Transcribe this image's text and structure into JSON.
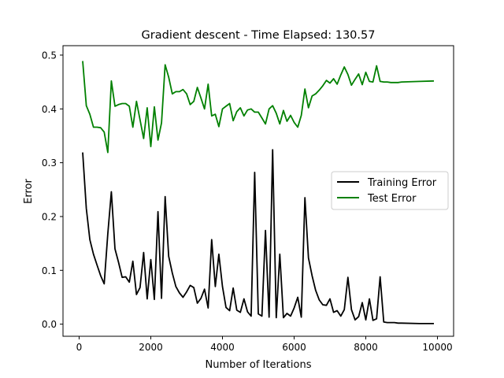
{
  "chart_data": {
    "type": "line",
    "title": "Gradient descent - Time Elapsed: 130.57",
    "xlabel": "Number of Iterations",
    "ylabel": "Error",
    "xlim": [
      -450,
      10450
    ],
    "ylim": [
      -0.0225,
      0.5175
    ],
    "xticks": [
      0,
      2000,
      4000,
      6000,
      8000,
      10000
    ],
    "yticks": [
      0.0,
      0.1,
      0.2,
      0.3,
      0.4,
      0.5
    ],
    "xtick_labels": [
      "0",
      "2000",
      "4000",
      "6000",
      "8000",
      "10000"
    ],
    "ytick_labels": [
      "0.0",
      "0.1",
      "0.2",
      "0.3",
      "0.4",
      "0.5"
    ],
    "grid": false,
    "legend_position": "center-right",
    "series": [
      {
        "name": "Training Error",
        "color": "#000000",
        "x": [
          100,
          200,
          300,
          400,
          500,
          600,
          700,
          800,
          900,
          1000,
          1100,
          1200,
          1300,
          1400,
          1500,
          1600,
          1700,
          1800,
          1900,
          2000,
          2100,
          2200,
          2300,
          2400,
          2500,
          2600,
          2700,
          2800,
          2900,
          3000,
          3100,
          3200,
          3300,
          3400,
          3500,
          3600,
          3700,
          3800,
          3900,
          4000,
          4100,
          4200,
          4300,
          4400,
          4500,
          4600,
          4700,
          4800,
          4900,
          5000,
          5100,
          5200,
          5300,
          5400,
          5500,
          5600,
          5700,
          5800,
          5900,
          6000,
          6100,
          6200,
          6300,
          6400,
          6500,
          6600,
          6700,
          6800,
          6900,
          7000,
          7100,
          7200,
          7300,
          7400,
          7500,
          7600,
          7700,
          7800,
          7900,
          8000,
          8100,
          8200,
          8300,
          8400,
          8500,
          8600,
          8700,
          8800,
          8900,
          9000,
          9500,
          9900
        ],
        "y": [
          0.319,
          0.215,
          0.157,
          0.13,
          0.11,
          0.09,
          0.075,
          0.168,
          0.246,
          0.14,
          0.115,
          0.087,
          0.088,
          0.078,
          0.117,
          0.055,
          0.068,
          0.133,
          0.047,
          0.12,
          0.046,
          0.209,
          0.048,
          0.237,
          0.126,
          0.095,
          0.07,
          0.058,
          0.05,
          0.06,
          0.072,
          0.068,
          0.039,
          0.048,
          0.065,
          0.03,
          0.157,
          0.07,
          0.13,
          0.07,
          0.031,
          0.025,
          0.067,
          0.026,
          0.022,
          0.047,
          0.023,
          0.015,
          0.282,
          0.019,
          0.015,
          0.174,
          0.013,
          0.324,
          0.012,
          0.13,
          0.012,
          0.02,
          0.015,
          0.03,
          0.05,
          0.013,
          0.235,
          0.123,
          0.09,
          0.063,
          0.045,
          0.036,
          0.035,
          0.047,
          0.022,
          0.025,
          0.015,
          0.027,
          0.087,
          0.027,
          0.008,
          0.014,
          0.04,
          0.008,
          0.047,
          0.007,
          0.01,
          0.088,
          0.004,
          0.003,
          0.003,
          0.003,
          0.002,
          0.002,
          0.001,
          0.001
        ]
      },
      {
        "name": "Test Error",
        "color": "#008000",
        "x": [
          100,
          200,
          300,
          400,
          500,
          600,
          700,
          800,
          900,
          1000,
          1100,
          1200,
          1300,
          1400,
          1500,
          1600,
          1700,
          1800,
          1900,
          2000,
          2100,
          2200,
          2300,
          2400,
          2500,
          2600,
          2700,
          2800,
          2900,
          3000,
          3100,
          3200,
          3300,
          3400,
          3500,
          3600,
          3700,
          3800,
          3900,
          4000,
          4100,
          4200,
          4300,
          4400,
          4500,
          4600,
          4700,
          4800,
          4900,
          5000,
          5100,
          5200,
          5300,
          5400,
          5500,
          5600,
          5700,
          5800,
          5900,
          6000,
          6100,
          6200,
          6300,
          6400,
          6500,
          6600,
          6700,
          6800,
          6900,
          7000,
          7100,
          7200,
          7300,
          7400,
          7500,
          7600,
          7700,
          7800,
          7900,
          8000,
          8100,
          8200,
          8300,
          8400,
          8500,
          8600,
          8700,
          8800,
          8900,
          9000,
          9500,
          9900
        ],
        "y": [
          0.489,
          0.406,
          0.39,
          0.366,
          0.366,
          0.365,
          0.357,
          0.319,
          0.452,
          0.405,
          0.408,
          0.41,
          0.41,
          0.405,
          0.366,
          0.414,
          0.38,
          0.345,
          0.402,
          0.33,
          0.404,
          0.342,
          0.374,
          0.482,
          0.459,
          0.428,
          0.432,
          0.432,
          0.436,
          0.428,
          0.408,
          0.414,
          0.44,
          0.42,
          0.4,
          0.446,
          0.387,
          0.39,
          0.367,
          0.4,
          0.405,
          0.41,
          0.378,
          0.395,
          0.402,
          0.387,
          0.398,
          0.4,
          0.394,
          0.394,
          0.383,
          0.372,
          0.4,
          0.406,
          0.392,
          0.372,
          0.397,
          0.377,
          0.388,
          0.375,
          0.366,
          0.388,
          0.437,
          0.402,
          0.424,
          0.428,
          0.435,
          0.443,
          0.453,
          0.448,
          0.456,
          0.446,
          0.463,
          0.478,
          0.464,
          0.444,
          0.455,
          0.465,
          0.445,
          0.468,
          0.451,
          0.45,
          0.48,
          0.451,
          0.45,
          0.45,
          0.449,
          0.449,
          0.449,
          0.45,
          0.451,
          0.452
        ]
      }
    ]
  }
}
